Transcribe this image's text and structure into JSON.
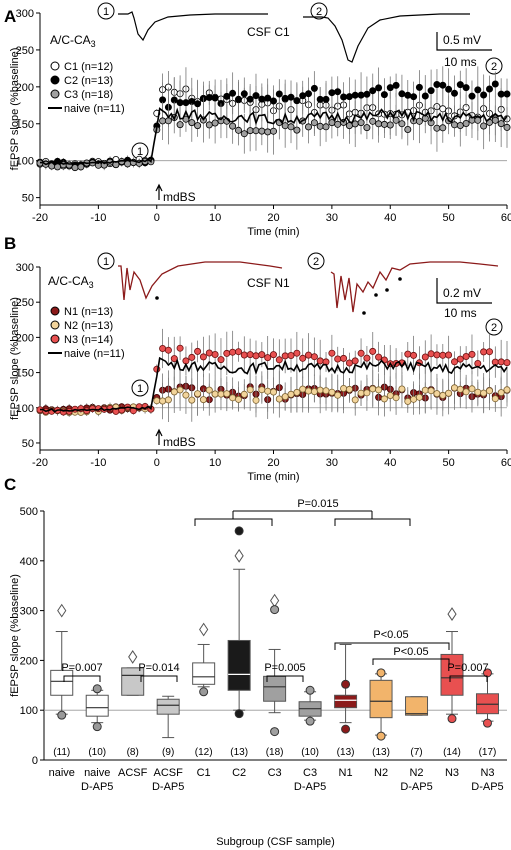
{
  "panels": {
    "a": {
      "letter": "A",
      "region": "A/C-CA",
      "region_sub": "3",
      "csf_label": "CSF C1",
      "scale_mv": "0.5 mV",
      "scale_ms": "10 ms",
      "trace1_marker": "1",
      "trace2_marker": "2",
      "arrow_label": "mdBS",
      "legend": [
        "C1 (n=12)",
        "C2 (n=13)",
        "C3 (n=18)",
        "naive (n=11)"
      ]
    },
    "b": {
      "letter": "B",
      "region": "A/C-CA",
      "region_sub": "3",
      "csf_label": "CSF N1",
      "scale_mv": "0.2 mV",
      "scale_ms": "10 ms",
      "trace1_marker": "1",
      "trace2_marker": "2",
      "arrow_label": "mdBS",
      "legend": [
        "N1 (n=13)",
        "N2 (n=13)",
        "N3 (n=14)",
        "naive (n=11)"
      ]
    },
    "c": {
      "letter": "C",
      "sig": [
        "P=0.007",
        "P=0.014",
        "P=0.005",
        "P=0.015",
        "P<0.05",
        "P<0.05",
        "P=0.007"
      ]
    }
  },
  "chart_data": [
    {
      "type": "scatter",
      "panel": "A",
      "xlabel": "Time (min)",
      "ylabel": "fEPSP slope (%baseline)",
      "xlim": [
        -20,
        60
      ],
      "ylim": [
        40,
        300
      ],
      "xticks": [
        -20,
        -10,
        0,
        10,
        20,
        30,
        40,
        50,
        60
      ],
      "yticks": [
        50,
        100,
        150,
        200,
        250,
        300
      ],
      "baseline": 100,
      "series": [
        {
          "name": "C1 (n=12)",
          "style": "open circle",
          "x": [
            -20,
            -15,
            -10,
            -5,
            -1,
            0.5,
            2,
            5,
            10,
            15,
            20,
            25,
            30,
            35,
            40,
            45,
            50,
            55,
            60
          ],
          "y": [
            97,
            95,
            97,
            100,
            100,
            200,
            195,
            190,
            185,
            180,
            175,
            175,
            172,
            172,
            170,
            168,
            168,
            166,
            165
          ]
        },
        {
          "name": "C2 (n=13)",
          "style": "filled black circle",
          "x": [
            -20,
            -15,
            -10,
            -5,
            -1,
            0.5,
            2,
            5,
            10,
            15,
            20,
            25,
            30,
            35,
            40,
            45,
            50,
            55,
            60
          ],
          "y": [
            98,
            95,
            96,
            98,
            100,
            175,
            178,
            180,
            182,
            185,
            187,
            190,
            192,
            192,
            194,
            195,
            195,
            196,
            196
          ]
        },
        {
          "name": "C3 (n=18)",
          "style": "grey circle",
          "x": [
            -20,
            -15,
            -10,
            -5,
            -1,
            0.5,
            2,
            5,
            10,
            15,
            20,
            25,
            30,
            35,
            40,
            45,
            50,
            55,
            60
          ],
          "y": [
            95,
            93,
            96,
            97,
            98,
            160,
            152,
            148,
            146,
            145,
            145,
            146,
            148,
            150,
            150,
            152,
            150,
            148,
            148
          ]
        },
        {
          "name": "naive (n=11)",
          "style": "line",
          "x": [
            -20,
            -15,
            -10,
            -5,
            -1,
            0.5,
            2,
            5,
            10,
            15,
            20,
            25,
            30,
            35,
            40,
            45,
            50,
            55,
            60
          ],
          "y": [
            97,
            96,
            98,
            99,
            100,
            170,
            160,
            165,
            158,
            160,
            155,
            158,
            160,
            158,
            165,
            160,
            158,
            160,
            158
          ]
        }
      ]
    },
    {
      "type": "scatter",
      "panel": "B",
      "xlabel": "Time (min)",
      "ylabel": "fEPSP slope (%baseline)",
      "xlim": [
        -20,
        60
      ],
      "ylim": [
        40,
        300
      ],
      "xticks": [
        -20,
        -10,
        0,
        10,
        20,
        30,
        40,
        50,
        60
      ],
      "yticks": [
        50,
        100,
        150,
        200,
        250,
        300
      ],
      "baseline": 100,
      "series": [
        {
          "name": "N1 (n=13)",
          "style": "dark red circle",
          "x": [
            -20,
            -15,
            -10,
            -5,
            -1,
            0.5,
            2,
            5,
            10,
            15,
            20,
            25,
            30,
            35,
            40,
            45,
            50,
            55,
            60
          ],
          "y": [
            98,
            96,
            98,
            100,
            100,
            118,
            120,
            122,
            120,
            122,
            120,
            120,
            120,
            122,
            120,
            120,
            122,
            122,
            120
          ]
        },
        {
          "name": "N2 (n=13)",
          "style": "beige circle",
          "x": [
            -20,
            -15,
            -10,
            -5,
            -1,
            0.5,
            2,
            5,
            10,
            15,
            20,
            25,
            30,
            35,
            40,
            45,
            50,
            55,
            60
          ],
          "y": [
            97,
            95,
            97,
            99,
            100,
            112,
            115,
            118,
            118,
            120,
            118,
            118,
            118,
            120,
            118,
            118,
            120,
            118,
            118
          ]
        },
        {
          "name": "N3 (n=14)",
          "style": "red circle",
          "x": [
            -20,
            -15,
            -10,
            -5,
            -1,
            0.5,
            2,
            5,
            10,
            15,
            20,
            25,
            30,
            35,
            40,
            45,
            50,
            55,
            60
          ],
          "y": [
            96,
            95,
            97,
            98,
            100,
            180,
            178,
            175,
            172,
            172,
            170,
            170,
            170,
            172,
            170,
            170,
            172,
            170,
            172
          ]
        },
        {
          "name": "naive (n=11)",
          "style": "line",
          "x": [
            -20,
            -15,
            -10,
            -5,
            -1,
            0.5,
            2,
            5,
            10,
            15,
            20,
            25,
            30,
            35,
            40,
            45,
            50,
            55,
            60
          ],
          "y": [
            97,
            96,
            98,
            99,
            100,
            170,
            162,
            160,
            158,
            155,
            160,
            158,
            155,
            158,
            162,
            158,
            155,
            158,
            155
          ]
        }
      ]
    },
    {
      "type": "box",
      "panel": "C",
      "xlabel": "Subgroup (CSF sample)",
      "ylabel": "fEPSP slope (%baseline)",
      "ylim": [
        0,
        500
      ],
      "yticks": [
        0,
        100,
        200,
        300,
        400,
        500
      ],
      "baseline": 100,
      "categories": [
        {
          "name": "naive",
          "sub": "",
          "n": "(11)",
          "q1": 130,
          "median": 158,
          "q3": 180,
          "wlo": 92,
          "whi": 258,
          "color": "#ffffff",
          "outliers": [
            {
              "y": 300,
              "shape": "diamond"
            },
            {
              "y": 90,
              "shape": "circle"
            }
          ]
        },
        {
          "name": "naive",
          "sub": "D-AP5",
          "n": "(10)",
          "q1": 88,
          "median": 105,
          "q3": 130,
          "wlo": 75,
          "whi": 140,
          "color": "#ffffff",
          "outliers": [
            {
              "y": 143,
              "shape": "circle"
            },
            {
              "y": 67,
              "shape": "circle"
            }
          ]
        },
        {
          "name": "ACSF",
          "sub": "",
          "n": "(8)",
          "q1": 130,
          "median": 170,
          "q3": 185,
          "wlo": 130,
          "whi": 185,
          "color": "#c8c8c8",
          "outliers": [
            {
              "y": 207,
              "shape": "diamond"
            }
          ]
        },
        {
          "name": "ACSF",
          "sub": "D-AP5",
          "n": "(9)",
          "q1": 92,
          "median": 110,
          "q3": 122,
          "wlo": 45,
          "whi": 128,
          "color": "#c8c8c8",
          "outliers": []
        },
        {
          "name": "C1",
          "sub": "",
          "n": "(12)",
          "q1": 152,
          "median": 167,
          "q3": 195,
          "wlo": 147,
          "whi": 232,
          "color": "#ffffff",
          "outliers": [
            {
              "y": 262,
              "shape": "diamond"
            },
            {
              "y": 137,
              "shape": "circle"
            }
          ]
        },
        {
          "name": "C2",
          "sub": "",
          "n": "(13)",
          "q1": 140,
          "median": 172,
          "q3": 240,
          "wlo": 100,
          "whi": 383,
          "color": "#1a1a1a",
          "outliers": [
            {
              "y": 460,
              "shape": "circle"
            },
            {
              "y": 410,
              "shape": "diamond"
            },
            {
              "y": 93,
              "shape": "circle"
            }
          ]
        },
        {
          "name": "C3",
          "sub": "",
          "n": "(18)",
          "q1": 118,
          "median": 147,
          "q3": 168,
          "wlo": 95,
          "whi": 222,
          "color": "#a0a0a0",
          "outliers": [
            {
              "y": 320,
              "shape": "diamond"
            },
            {
              "y": 302,
              "shape": "circle"
            },
            {
              "y": 57,
              "shape": "circle"
            }
          ]
        },
        {
          "name": "C3",
          "sub": "D-AP5",
          "n": "(10)",
          "q1": 88,
          "median": 103,
          "q3": 117,
          "wlo": 80,
          "whi": 137,
          "color": "#a0a0a0",
          "outliers": [
            {
              "y": 140,
              "shape": "circle"
            },
            {
              "y": 78,
              "shape": "circle"
            }
          ]
        },
        {
          "name": "N1",
          "sub": "",
          "n": "(13)",
          "q1": 105,
          "median": 120,
          "q3": 130,
          "wlo": 75,
          "whi": 232,
          "color": "#8b1a1a",
          "outliers": [
            {
              "y": 152,
              "shape": "circle"
            },
            {
              "y": 62,
              "shape": "circle"
            }
          ]
        },
        {
          "name": "N2",
          "sub": "",
          "n": "(13)",
          "q1": 85,
          "median": 118,
          "q3": 160,
          "wlo": 50,
          "whi": 173,
          "color": "#f2b46b",
          "outliers": [
            {
              "y": 175,
              "shape": "circle"
            },
            {
              "y": 48,
              "shape": "circle"
            }
          ]
        },
        {
          "name": "N2",
          "sub": "D-AP5",
          "n": "(7)",
          "q1": 90,
          "median": 93,
          "q3": 127,
          "wlo": 90,
          "whi": 127,
          "color": "#f2b46b",
          "outliers": []
        },
        {
          "name": "N3",
          "sub": "",
          "n": "(14)",
          "q1": 130,
          "median": 165,
          "q3": 212,
          "wlo": 92,
          "whi": 258,
          "color": "#e85050",
          "outliers": [
            {
              "y": 293,
              "shape": "diamond"
            },
            {
              "y": 83,
              "shape": "circle"
            }
          ]
        },
        {
          "name": "N3",
          "sub": "D-AP5",
          "n": "(17)",
          "q1": 93,
          "median": 112,
          "q3": 133,
          "wlo": 78,
          "whi": 173,
          "color": "#e85050",
          "outliers": [
            {
              "y": 175,
              "shape": "circle"
            },
            {
              "y": 74,
              "shape": "circle"
            }
          ]
        }
      ]
    }
  ]
}
